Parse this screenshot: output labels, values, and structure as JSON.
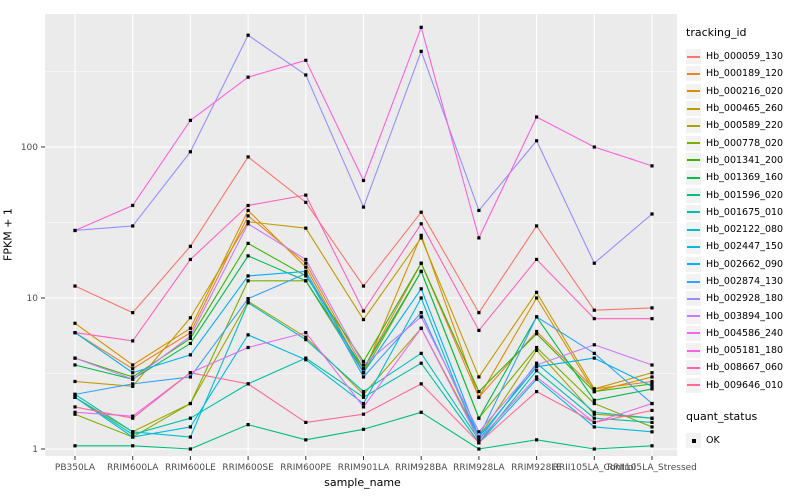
{
  "chart_data": {
    "type": "line",
    "xlabel": "sample_name",
    "ylabel": "FPKM + 1",
    "y_scale": "log10",
    "y_ticks": [
      "1",
      "10",
      "100"
    ],
    "ylim": [
      0.93,
      760
    ],
    "grid": "major-and-minor, white on gray panel",
    "panel_bg": "#EBEBEB",
    "grid_color": "#FFFFFF",
    "legend_position": "right",
    "legend_title": "tracking_id",
    "quant_legend_title": "quant_status",
    "quant_legend_value": "OK",
    "point_marker": {
      "shape": "square",
      "color": "#000000",
      "size": 3
    },
    "categories": [
      "PB350LA",
      "RRIM600LA",
      "RRIM600LE",
      "RRIM600SE",
      "RRIM600PE",
      "RRIM901LA",
      "RRIM928BA",
      "RRIM928LA",
      "RRIM928LE",
      "RRII105LA_Control",
      "RRII105LA_Stressed"
    ],
    "series": [
      {
        "name": "Hb_000059_130",
        "color": "#F8766D",
        "values": [
          12,
          8,
          22,
          86,
          43,
          12,
          37,
          8,
          30,
          8.3,
          8.6
        ]
      },
      {
        "name": "Hb_000189_120",
        "color": "#EA8331",
        "values": [
          5.9,
          3.4,
          5.9,
          35,
          17,
          3.4,
          17,
          2.2,
          6.0,
          2.5,
          2.8
        ]
      },
      {
        "name": "Hb_000216_020",
        "color": "#D89000",
        "values": [
          6.8,
          3.6,
          6.3,
          38,
          16,
          3.2,
          26,
          2.2,
          10,
          2.4,
          3.0
        ]
      },
      {
        "name": "Hb_000465_260",
        "color": "#C09B00",
        "values": [
          2.8,
          2.6,
          7.4,
          32,
          29,
          7.2,
          25,
          3.0,
          10.9,
          2.5,
          3.2
        ]
      },
      {
        "name": "Hb_000589_220",
        "color": "#A3A500",
        "values": [
          2.2,
          1.3,
          2.0,
          9.5,
          5.5,
          2.3,
          6.3,
          1.2,
          4.5,
          1.7,
          1.6
        ]
      },
      {
        "name": "Hb_000778_020",
        "color": "#7CAE00",
        "values": [
          1.7,
          1.2,
          2.0,
          13,
          13,
          3.2,
          15,
          1.6,
          4.7,
          2.0,
          1.4
        ]
      },
      {
        "name": "Hb_001341_200",
        "color": "#39B600",
        "values": [
          4.0,
          3.0,
          5.4,
          23,
          14,
          3.8,
          17,
          2.4,
          5.8,
          2.4,
          2.7
        ]
      },
      {
        "name": "Hb_001369_160",
        "color": "#00BB4E",
        "values": [
          3.6,
          2.9,
          5.0,
          19,
          13,
          3.4,
          15,
          1.6,
          7.5,
          2.1,
          2.5
        ]
      },
      {
        "name": "Hb_001596_020",
        "color": "#00BF7D",
        "values": [
          1.05,
          1.05,
          1.0,
          1.45,
          1.15,
          1.35,
          1.75,
          1.0,
          1.15,
          1.0,
          1.05
        ]
      },
      {
        "name": "Hb_001675_010",
        "color": "#00C1A3",
        "values": [
          2.2,
          1.25,
          1.6,
          2.7,
          4.0,
          2.2,
          3.7,
          1.1,
          3.3,
          1.6,
          1.5
        ]
      },
      {
        "name": "Hb_002122_080",
        "color": "#00BFC4",
        "values": [
          2.3,
          1.3,
          1.2,
          9.3,
          5.3,
          2.4,
          4.3,
          1.15,
          3.7,
          1.75,
          1.6
        ]
      },
      {
        "name": "Hb_002447_150",
        "color": "#00BAE0",
        "values": [
          2.2,
          1.2,
          1.4,
          5.7,
          3.9,
          2.0,
          10,
          1.1,
          2.9,
          1.4,
          1.3
        ]
      },
      {
        "name": "Hb_002662_090",
        "color": "#00B0F6",
        "values": [
          5.9,
          3.2,
          4.2,
          14,
          15,
          3.2,
          11.5,
          1.2,
          3.5,
          4.0,
          2.6
        ]
      },
      {
        "name": "Hb_002874_130",
        "color": "#35A2FF",
        "values": [
          2.3,
          2.7,
          3.0,
          9.9,
          14.5,
          3.0,
          8.0,
          1.2,
          7.5,
          4.3,
          2.0
        ]
      },
      {
        "name": "Hb_002928_180",
        "color": "#9590FF",
        "values": [
          28,
          30,
          93,
          550,
          300,
          40,
          430,
          38,
          110,
          17,
          36
        ]
      },
      {
        "name": "Hb_003894_100",
        "color": "#C77CFF",
        "values": [
          4.0,
          2.9,
          5.6,
          31,
          18,
          3.6,
          7.5,
          1.3,
          3.6,
          4.9,
          3.6
        ]
      },
      {
        "name": "Hb_004586_240",
        "color": "#E76BF3",
        "values": [
          1.75,
          1.65,
          3.2,
          4.7,
          5.9,
          1.9,
          6.3,
          1.15,
          3.0,
          1.5,
          2.0
        ]
      },
      {
        "name": "Hb_005181_180",
        "color": "#FA62DB",
        "values": [
          28,
          41,
          150,
          290,
          375,
          60,
          620,
          25,
          158,
          100,
          75
        ]
      },
      {
        "name": "Hb_008667_060",
        "color": "#FF62BC",
        "values": [
          5.9,
          5.2,
          18,
          41,
          48,
          8.2,
          31,
          6.1,
          18,
          7.3,
          7.3
        ]
      },
      {
        "name": "Hb_009646_010",
        "color": "#FF6A98",
        "values": [
          1.9,
          1.6,
          3.2,
          2.7,
          1.5,
          1.7,
          2.7,
          1.1,
          2.4,
          1.5,
          1.8
        ]
      }
    ]
  }
}
